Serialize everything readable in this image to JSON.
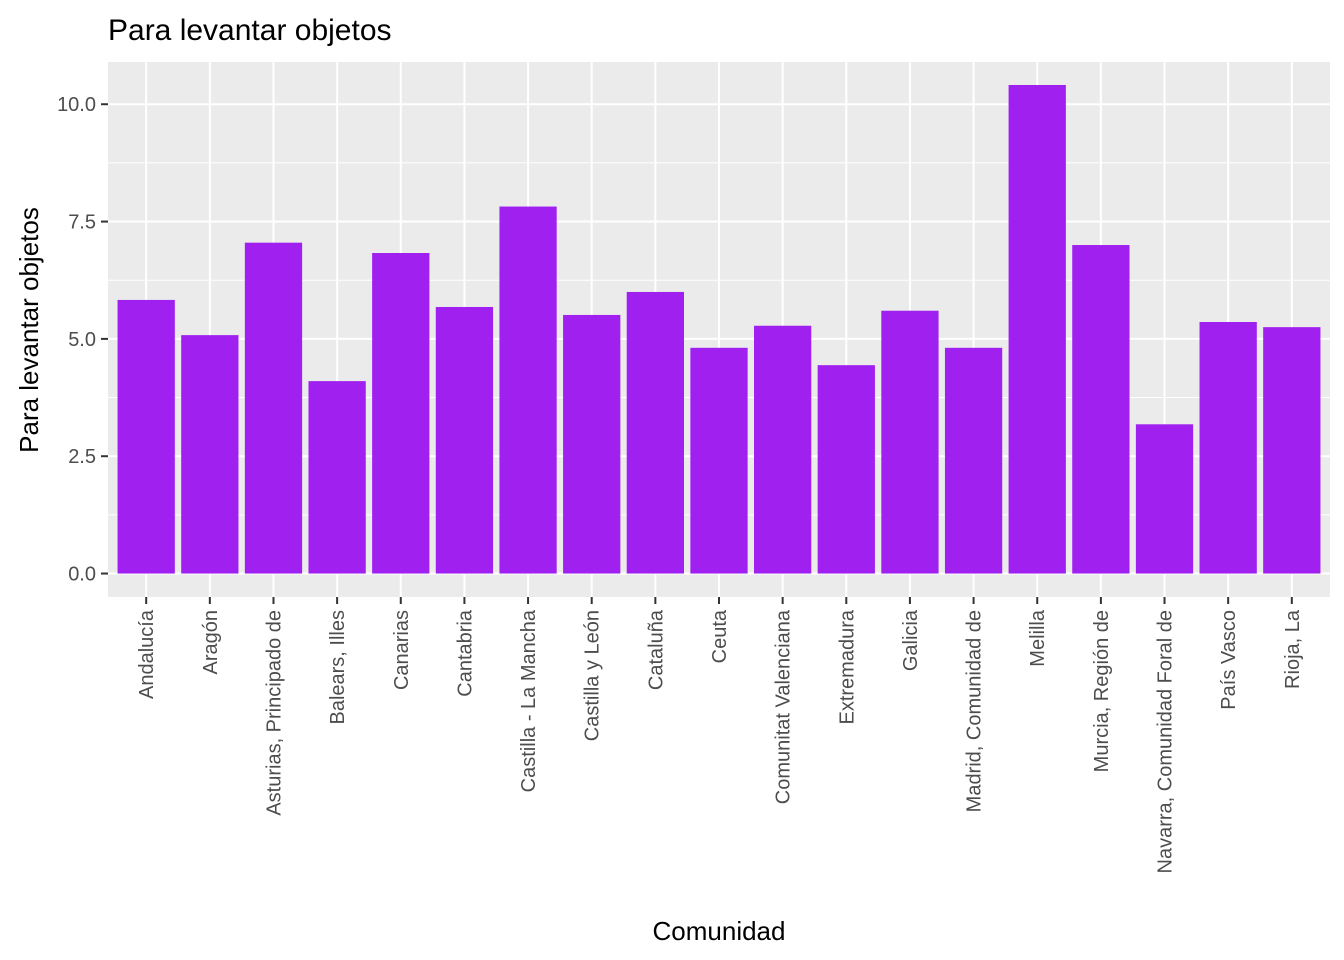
{
  "chart_data": {
    "type": "bar",
    "title": "Para levantar objetos",
    "xlabel": "Comunidad",
    "ylabel": "Para levantar objetos",
    "categories": [
      "Andalucía",
      "Aragón",
      "Asturias, Principado de",
      "Balears, Illes",
      "Canarias",
      "Cantabria",
      "Castilla - La Mancha",
      "Castilla y León",
      "Cataluña",
      "Ceuta",
      "Comunitat Valenciana",
      "Extremadura",
      "Galicia",
      "Madrid, Comunidad de",
      "Melilla",
      "Murcia, Región de",
      "Navarra, Comunidad Foral de",
      "País Vasco",
      "Rioja, La"
    ],
    "values": [
      5.83,
      5.08,
      7.05,
      4.1,
      6.83,
      5.68,
      7.82,
      5.51,
      6.0,
      4.81,
      5.28,
      4.44,
      5.6,
      4.81,
      10.41,
      7.0,
      3.18,
      5.36,
      5.25
    ],
    "ylim": [
      -0.5,
      10.9
    ],
    "yticks": [
      0.0,
      2.5,
      5.0,
      7.5,
      10.0
    ],
    "ytick_labels": [
      "0.0",
      "2.5",
      "5.0",
      "7.5",
      "10.0"
    ],
    "grid": true,
    "bar_color": "#a020f0",
    "panel_color": "#ebebeb"
  }
}
